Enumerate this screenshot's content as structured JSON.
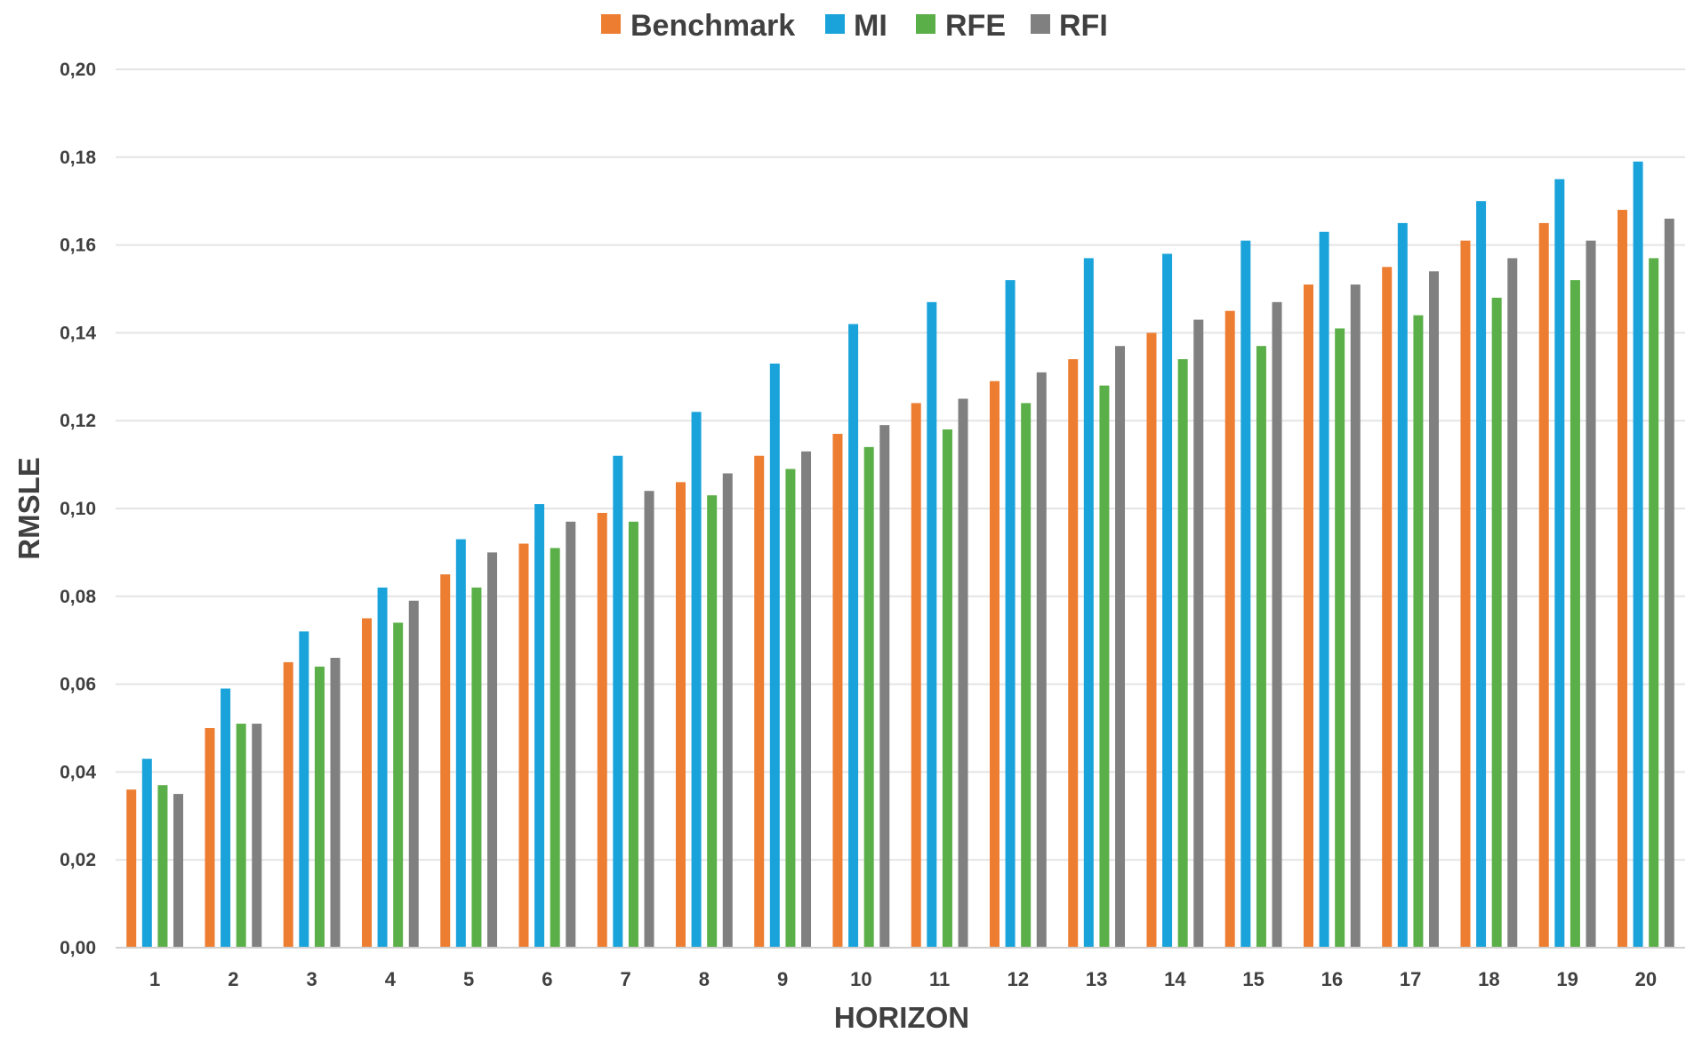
{
  "chart_data": {
    "type": "bar",
    "title": "",
    "xlabel": "HORIZON",
    "ylabel": "RMSLE",
    "ylim": [
      0,
      0.2
    ],
    "yticks": [
      "0,00",
      "0,02",
      "0,04",
      "0,06",
      "0,08",
      "0,10",
      "0,12",
      "0,14",
      "0,16",
      "0,18",
      "0,20"
    ],
    "grid": true,
    "legend_position": "top-center",
    "categories": [
      "1",
      "2",
      "3",
      "4",
      "5",
      "6",
      "7",
      "8",
      "9",
      "10",
      "11",
      "12",
      "13",
      "14",
      "15",
      "16",
      "17",
      "18",
      "19",
      "20"
    ],
    "series": [
      {
        "name": "Benchmark",
        "color": "#ED7D31",
        "values": [
          0.036,
          0.05,
          0.065,
          0.075,
          0.085,
          0.092,
          0.099,
          0.106,
          0.112,
          0.117,
          0.124,
          0.129,
          0.134,
          0.14,
          0.145,
          0.151,
          0.155,
          0.161,
          0.165,
          0.168
        ]
      },
      {
        "name": "MI",
        "color": "#1AA3DA",
        "values": [
          0.043,
          0.059,
          0.072,
          0.082,
          0.093,
          0.101,
          0.112,
          0.122,
          0.133,
          0.142,
          0.147,
          0.152,
          0.157,
          0.158,
          0.161,
          0.163,
          0.165,
          0.17,
          0.175,
          0.179
        ]
      },
      {
        "name": "RFE",
        "color": "#5BAF48",
        "values": [
          0.037,
          0.051,
          0.064,
          0.074,
          0.082,
          0.091,
          0.097,
          0.103,
          0.109,
          0.114,
          0.118,
          0.124,
          0.128,
          0.134,
          0.137,
          0.141,
          0.144,
          0.148,
          0.152,
          0.157
        ]
      },
      {
        "name": "RFI",
        "color": "#808080",
        "values": [
          0.035,
          0.051,
          0.066,
          0.079,
          0.09,
          0.097,
          0.104,
          0.108,
          0.113,
          0.119,
          0.125,
          0.131,
          0.137,
          0.143,
          0.147,
          0.151,
          0.154,
          0.157,
          0.161,
          0.166
        ]
      }
    ]
  }
}
